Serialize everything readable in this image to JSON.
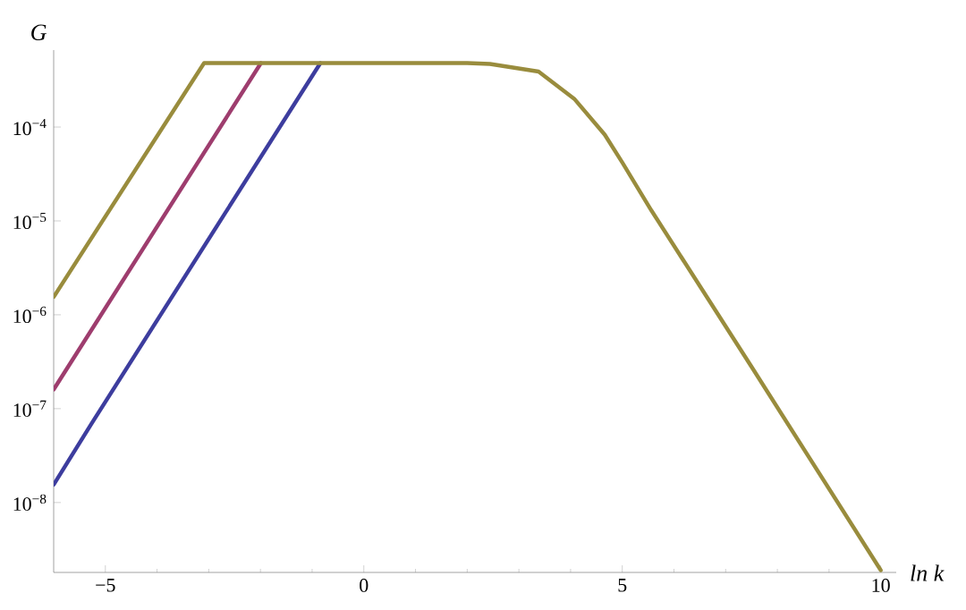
{
  "chart_data": {
    "type": "line",
    "xlabel": "ln k",
    "ylabel": "G",
    "log": "y",
    "grid": false,
    "line_style": "solid",
    "marker": "none",
    "xlim": [
      -6,
      10.3
    ],
    "ylim": [
      1.8e-09,
      0.00066
    ],
    "xticks": [
      {
        "value": -5,
        "label": "−5"
      },
      0,
      5,
      10
    ],
    "yticks": [
      {
        "value": 1e-08,
        "label": "10$^{−8}$"
      },
      {
        "value": 1e-07,
        "label": "10$^{−7}$"
      },
      {
        "value": 1e-06,
        "label": "10$^{−6}$"
      },
      {
        "value": 1e-05,
        "label": "10$^{−5}$"
      },
      {
        "value": 0.0001,
        "label": "10$^{−4}$"
      }
    ],
    "series": [
      {
        "color": "#3d3d9e",
        "x": [
          -6,
          -5.27,
          -0.84
        ],
        "values": [
          1.55e-08,
          6.9e-08,
          0.00048
        ]
      },
      {
        "color": "#9e3d6e",
        "x": [
          -6,
          -1.99
        ],
        "values": [
          1.6e-07,
          0.00048
        ]
      },
      {
        "color": "#998c3d",
        "x": [
          -6,
          -3.09,
          0,
          2,
          2.44,
          3.38,
          4.07,
          4.66,
          5,
          5.56,
          7.5,
          10
        ],
        "values": [
          1.55e-06,
          0.00048,
          0.00048,
          0.00048,
          0.00047,
          0.00039,
          0.0002,
          8.3e-05,
          4.2e-05,
          1.3e-05,
          2.8e-07,
          1.9e-09
        ]
      }
    ]
  }
}
